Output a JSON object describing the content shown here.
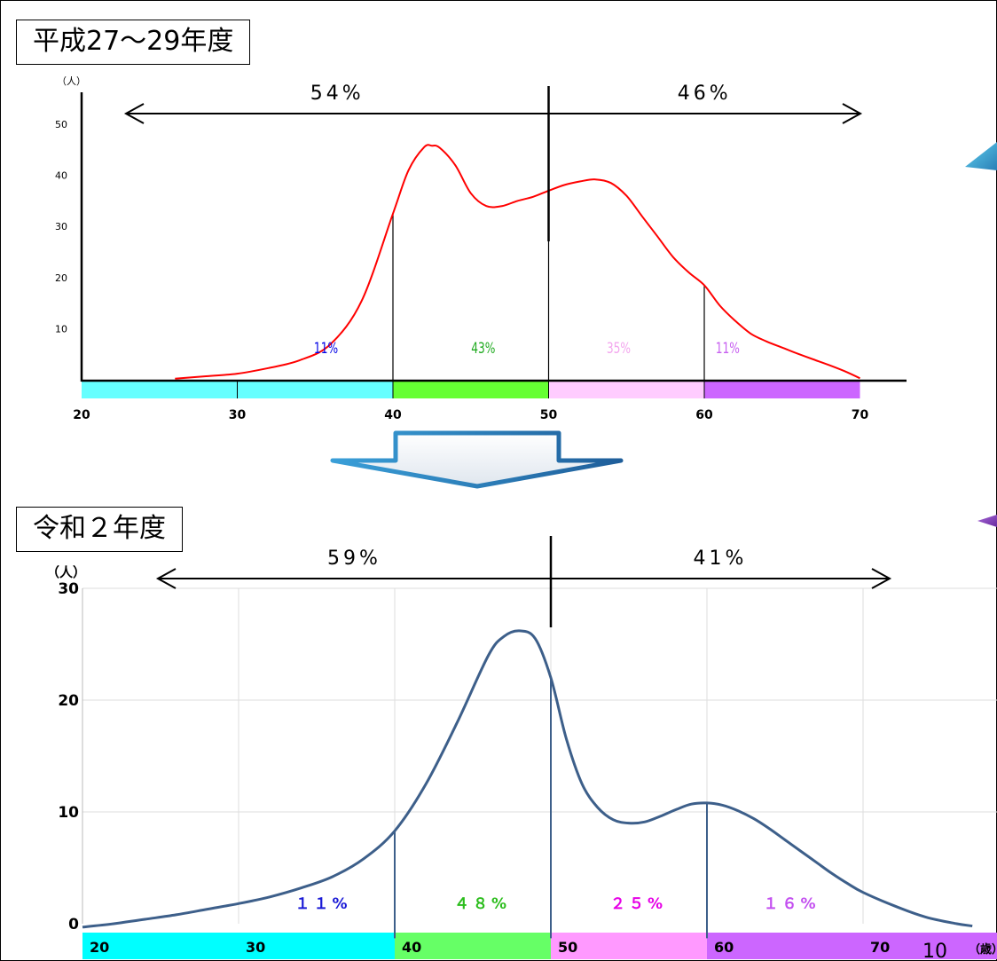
{
  "chart_data": [
    {
      "type": "line",
      "title": "平成27〜29年度",
      "ylabel": "（人）",
      "xlim": [
        20,
        70
      ],
      "ylim": [
        0,
        50
      ],
      "x_ticks": [
        "20",
        "30",
        "40",
        "50",
        "60",
        "70"
      ],
      "y_ticks": [
        "10",
        "20",
        "30",
        "40",
        "50"
      ],
      "curve_color": "#ff0000",
      "series": [
        {
          "x": [
            26,
            28,
            30,
            32,
            34,
            36,
            38,
            40,
            41,
            42,
            42.5,
            43,
            44,
            45,
            46,
            47,
            48,
            49,
            50,
            51,
            52,
            53,
            54,
            55,
            56,
            57,
            58,
            59,
            60,
            61,
            62,
            63,
            64,
            65,
            66,
            67,
            68,
            69,
            70
          ],
          "values": [
            0.2,
            0.7,
            1.2,
            2.3,
            3.8,
            7,
            15.5,
            32.5,
            41,
            45.5,
            45.8,
            45.4,
            42,
            36.5,
            34,
            34,
            35,
            35.8,
            37,
            38.1,
            38.8,
            39.2,
            38.5,
            36,
            32,
            28,
            24,
            21,
            18.5,
            14.5,
            11.5,
            9,
            7.5,
            6.3,
            5.1,
            4,
            2.9,
            1.7,
            0.3
          ]
        }
      ],
      "boundaries": [
        {
          "x": 40,
          "y": 32.5
        },
        {
          "x": 50,
          "y": 37
        },
        {
          "x": 60,
          "y": 18.5
        }
      ],
      "segments": [
        {
          "label": "11%",
          "color": "#0000e6"
        },
        {
          "label": "43%",
          "color": "#1faa1f"
        },
        {
          "label": "35%",
          "color": "#f3a6ee"
        },
        {
          "label": "11%",
          "color": "#c75ff0"
        }
      ],
      "age_bands": [
        {
          "from": 20,
          "to": 40,
          "color": "#66ffff"
        },
        {
          "from": 40,
          "to": 50,
          "color": "#66ff33"
        },
        {
          "from": 50,
          "to": 60,
          "color": "#ffccff"
        },
        {
          "from": 60,
          "to": 70,
          "color": "#cc66ff"
        }
      ],
      "split": {
        "left": "54%",
        "right": "46%"
      }
    },
    {
      "type": "line",
      "title": "令和２年度",
      "ylabel": "（人）",
      "xunit": "（歳）",
      "xlim": [
        20,
        80
      ],
      "ylim": [
        0,
        30
      ],
      "x_ticks": [
        "20",
        "30",
        "40",
        "50",
        "60",
        "70"
      ],
      "y_ticks": [
        "0",
        "10",
        "20",
        "30"
      ],
      "grid": true,
      "curve_color": "#3d5f8a",
      "series": [
        {
          "x": [
            20,
            22,
            24,
            26,
            28,
            30,
            32,
            34,
            36,
            38,
            40,
            42,
            44,
            46,
            47,
            48,
            49,
            50,
            51,
            52,
            53,
            54,
            55,
            56,
            57,
            58,
            59,
            60,
            61,
            62,
            63,
            64,
            65,
            66,
            67,
            68,
            69,
            70,
            72,
            74,
            76,
            77
          ],
          "values": [
            -0.3,
            0,
            0.4,
            0.8,
            1.3,
            1.8,
            2.4,
            3.2,
            4.2,
            5.8,
            8.3,
            12.5,
            18,
            24,
            25.7,
            26.2,
            25.5,
            22,
            16.5,
            12.5,
            10.4,
            9.3,
            9,
            9.1,
            9.6,
            10.2,
            10.7,
            10.8,
            10.6,
            10.1,
            9.4,
            8.5,
            7.5,
            6.5,
            5.5,
            4.5,
            3.6,
            2.8,
            1.6,
            0.6,
            0,
            -0.2
          ]
        }
      ],
      "boundaries": [
        {
          "x": 40,
          "y": 8.3
        },
        {
          "x": 50,
          "y": 22
        },
        {
          "x": 60,
          "y": 10.8
        }
      ],
      "segments": [
        {
          "label": "１１%",
          "color": "#1a1ad6"
        },
        {
          "label": "４８%",
          "color": "#2bbd1c"
        },
        {
          "label": "２５%",
          "color": "#e600e6"
        },
        {
          "label": "１６%",
          "color": "#c34ff0"
        }
      ],
      "age_bands": [
        {
          "from": 20,
          "to": 40,
          "color": "#00ffff"
        },
        {
          "from": 40,
          "to": 50,
          "color": "#66ff66"
        },
        {
          "from": 50,
          "to": 60,
          "color": "#ff99ff"
        },
        {
          "from": 60,
          "to": 80,
          "color": "#cc66ff"
        }
      ],
      "split": {
        "left": "59%",
        "right": "41%"
      }
    }
  ],
  "page_number": "10"
}
